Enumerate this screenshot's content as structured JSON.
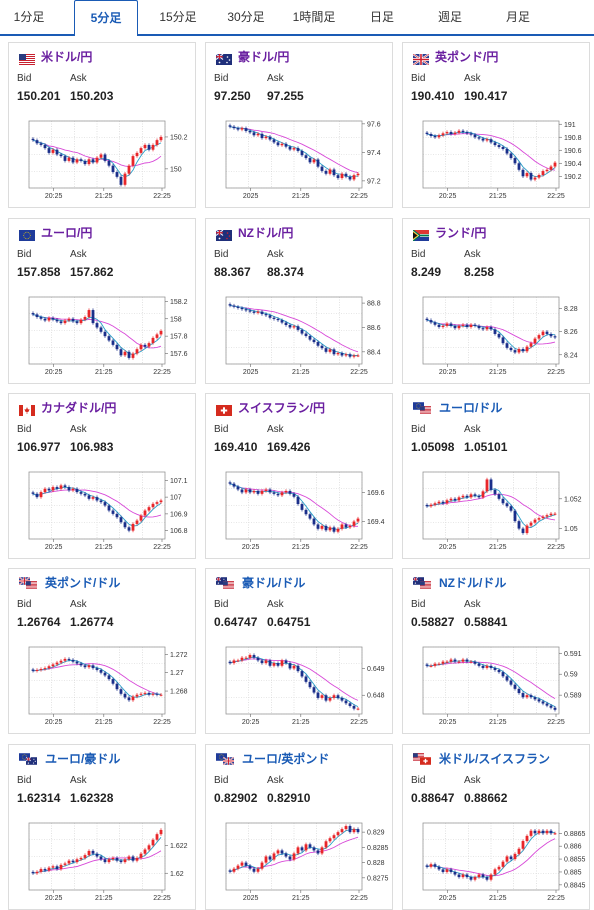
{
  "tabs": [
    {
      "label": "1分足"
    },
    {
      "label": "5分足",
      "active": true
    },
    {
      "label": "15分足"
    },
    {
      "label": "30分足"
    },
    {
      "label": "1時間足"
    },
    {
      "label": "日足"
    },
    {
      "label": "週足"
    },
    {
      "label": "月足"
    }
  ],
  "labels": {
    "bid": "Bid",
    "ask": "Ask"
  },
  "colors": {
    "up": "#e8262a",
    "down": "#1b2f8a",
    "ma_short": "#2aa0c8",
    "ma_long": "#d84ad8",
    "pair_jpy": "#6a1fa0",
    "pair_cross": "#1a5bb5"
  },
  "cards": [
    {
      "pair": "米ドル/円",
      "flags": [
        "us"
      ],
      "bid": "150.201",
      "ask": "150.203",
      "chart_data": {
        "type": "candlestick",
        "x_ticks": [
          "20:25",
          "21:25",
          "22:25"
        ],
        "y_ticks": [
          "150",
          "150.2"
        ],
        "ylim": [
          149.88,
          150.3
        ],
        "closes": [
          150.18,
          150.16,
          150.15,
          150.13,
          150.1,
          150.12,
          150.09,
          150.08,
          150.05,
          150.07,
          150.04,
          150.06,
          150.05,
          150.03,
          150.06,
          150.04,
          150.07,
          150.09,
          150.05,
          150.02,
          149.98,
          149.95,
          149.9,
          149.97,
          150.02,
          150.08,
          150.1,
          150.13,
          150.15,
          150.12,
          150.15,
          150.18,
          150.2
        ]
      }
    },
    {
      "pair": "豪ドル/円",
      "flags": [
        "au"
      ],
      "bid": "97.250",
      "ask": "97.255",
      "chart_data": {
        "type": "candlestick",
        "x_ticks": [
          "2025",
          "21:25",
          "22:25"
        ],
        "y_ticks": [
          "97.2",
          "97.4",
          "97.6"
        ],
        "ylim": [
          97.15,
          97.62
        ],
        "closes": [
          97.58,
          97.57,
          97.56,
          97.57,
          97.55,
          97.54,
          97.52,
          97.53,
          97.5,
          97.51,
          97.49,
          97.47,
          97.45,
          97.46,
          97.44,
          97.42,
          97.43,
          97.41,
          97.38,
          97.36,
          97.33,
          97.35,
          97.3,
          97.27,
          97.25,
          97.28,
          97.24,
          97.22,
          97.25,
          97.23,
          97.21,
          97.24,
          97.25
        ]
      }
    },
    {
      "pair": "英ポンド/円",
      "flags": [
        "uk"
      ],
      "bid": "190.410",
      "ask": "190.417",
      "chart_data": {
        "type": "candlestick",
        "x_ticks": [
          "20:25",
          "21:25",
          "22:25"
        ],
        "y_ticks": [
          "190.2",
          "190.4",
          "190.6",
          "190.8",
          "191"
        ],
        "ylim": [
          190.02,
          191.05
        ],
        "closes": [
          190.85,
          190.82,
          190.8,
          190.83,
          190.86,
          190.88,
          190.85,
          190.87,
          190.9,
          190.88,
          190.86,
          190.84,
          190.8,
          190.78,
          190.75,
          190.77,
          190.72,
          190.68,
          190.65,
          190.62,
          190.55,
          190.48,
          190.4,
          190.3,
          190.2,
          190.25,
          190.15,
          190.18,
          190.22,
          190.28,
          190.3,
          190.35,
          190.41
        ]
      }
    },
    {
      "pair": "ユーロ/円",
      "flags": [
        "eu"
      ],
      "bid": "157.858",
      "ask": "157.862",
      "chart_data": {
        "type": "candlestick",
        "x_ticks": [
          "20:25",
          "21:25",
          "22:25"
        ],
        "y_ticks": [
          "157.6",
          "157.8",
          "158",
          "158.2"
        ],
        "ylim": [
          157.48,
          158.25
        ],
        "closes": [
          158.05,
          158.02,
          158.0,
          157.98,
          158.01,
          157.99,
          157.97,
          157.95,
          157.98,
          158.0,
          157.97,
          157.95,
          157.99,
          158.02,
          158.1,
          157.95,
          157.9,
          157.85,
          157.8,
          157.75,
          157.7,
          157.65,
          157.58,
          157.62,
          157.55,
          157.6,
          157.65,
          157.7,
          157.68,
          157.72,
          157.78,
          157.82,
          157.86
        ]
      }
    },
    {
      "pair": "NZドル/円",
      "flags": [
        "nz"
      ],
      "bid": "88.367",
      "ask": "88.374",
      "chart_data": {
        "type": "candlestick",
        "x_ticks": [
          "2025",
          "21:25",
          "22:25"
        ],
        "y_ticks": [
          "88.4",
          "88.6",
          "88.8"
        ],
        "ylim": [
          88.3,
          88.85
        ],
        "closes": [
          88.78,
          88.77,
          88.76,
          88.75,
          88.74,
          88.73,
          88.72,
          88.73,
          88.71,
          88.7,
          88.68,
          88.67,
          88.66,
          88.64,
          88.62,
          88.6,
          88.61,
          88.58,
          88.55,
          88.53,
          88.5,
          88.48,
          88.45,
          88.43,
          88.4,
          88.42,
          88.38,
          88.39,
          88.37,
          88.38,
          88.36,
          88.37,
          88.37
        ]
      }
    },
    {
      "pair": "ランド/円",
      "flags": [
        "za"
      ],
      "bid": "8.249",
      "ask": "8.258",
      "chart_data": {
        "type": "candlestick",
        "x_ticks": [
          "20:25",
          "21:25",
          "22:25"
        ],
        "y_ticks": [
          "8.24",
          "8.26",
          "8.28"
        ],
        "ylim": [
          8.232,
          8.29
        ],
        "closes": [
          8.27,
          8.268,
          8.266,
          8.264,
          8.265,
          8.267,
          8.265,
          8.263,
          8.265,
          8.266,
          8.264,
          8.266,
          8.265,
          8.263,
          8.262,
          8.264,
          8.262,
          8.258,
          8.255,
          8.25,
          8.246,
          8.244,
          8.242,
          8.245,
          8.243,
          8.247,
          8.25,
          8.254,
          8.257,
          8.26,
          8.258,
          8.256,
          8.255
        ]
      }
    },
    {
      "pair": "カナダドル/円",
      "flags": [
        "ca"
      ],
      "bid": "106.977",
      "ask": "106.983",
      "chart_data": {
        "type": "candlestick",
        "x_ticks": [
          "20:25",
          "21:25",
          "22:25"
        ],
        "y_ticks": [
          "106.8",
          "106.9",
          "107",
          "107.1"
        ],
        "ylim": [
          106.75,
          107.15
        ],
        "closes": [
          107.02,
          107.0,
          107.03,
          107.05,
          107.04,
          107.06,
          107.05,
          107.07,
          107.06,
          107.04,
          107.05,
          107.03,
          107.02,
          107.01,
          106.99,
          107.0,
          106.98,
          106.97,
          106.95,
          106.92,
          106.9,
          106.88,
          106.85,
          106.82,
          106.8,
          106.84,
          106.86,
          106.89,
          106.92,
          106.94,
          106.96,
          106.97,
          106.98
        ]
      }
    },
    {
      "pair": "スイスフラン/円",
      "flags": [
        "ch"
      ],
      "bid": "169.410",
      "ask": "169.426",
      "chart_data": {
        "type": "candlestick",
        "x_ticks": [
          "20:25",
          "21:25",
          "22:25"
        ],
        "y_ticks": [
          "169.4",
          "169.6"
        ],
        "ylim": [
          169.28,
          169.74
        ],
        "closes": [
          169.66,
          169.64,
          169.62,
          169.6,
          169.62,
          169.6,
          169.61,
          169.59,
          169.61,
          169.62,
          169.6,
          169.59,
          169.58,
          169.6,
          169.61,
          169.59,
          169.57,
          169.52,
          169.48,
          169.45,
          169.42,
          169.38,
          169.35,
          169.37,
          169.34,
          169.36,
          169.33,
          169.35,
          169.38,
          169.36,
          169.37,
          169.4,
          169.42
        ]
      }
    },
    {
      "pair": "ユーロ/ドル",
      "flags": [
        "eu",
        "us"
      ],
      "bid": "1.05098",
      "ask": "1.05101",
      "chart_data": {
        "type": "candlestick",
        "x_ticks": [
          "20:25",
          "21:25",
          "22:25"
        ],
        "y_ticks": [
          "1.05",
          "1.052"
        ],
        "ylim": [
          1.0493,
          1.0538
        ],
        "closes": [
          1.0515,
          1.0516,
          1.0517,
          1.0518,
          1.0517,
          1.0519,
          1.052,
          1.0519,
          1.0521,
          1.0522,
          1.0521,
          1.0523,
          1.0522,
          1.0521,
          1.0525,
          1.0533,
          1.0526,
          1.0523,
          1.052,
          1.0517,
          1.0515,
          1.0512,
          1.0505,
          1.05,
          1.0497,
          1.0502,
          1.0504,
          1.0506,
          1.0507,
          1.0508,
          1.0509,
          1.051,
          1.051
        ]
      }
    },
    {
      "pair": "英ポンド/ドル",
      "flags": [
        "uk",
        "us"
      ],
      "bid": "1.26764",
      "ask": "1.26774",
      "chart_data": {
        "type": "candlestick",
        "x_ticks": [
          "20:25",
          "21:25",
          "22:25"
        ],
        "y_ticks": [
          "1.268",
          "1.27",
          "1.272"
        ],
        "ylim": [
          1.2655,
          1.2728
        ],
        "closes": [
          1.2702,
          1.2703,
          1.2704,
          1.2705,
          1.2707,
          1.2709,
          1.2711,
          1.2713,
          1.2715,
          1.2714,
          1.2712,
          1.271,
          1.2708,
          1.2706,
          1.2708,
          1.2705,
          1.2703,
          1.27,
          1.2697,
          1.2693,
          1.2688,
          1.2682,
          1.2677,
          1.2673,
          1.267,
          1.2674,
          1.2676,
          1.2677,
          1.2678,
          1.2676,
          1.2677,
          1.2676,
          1.2676
        ]
      }
    },
    {
      "pair": "豪ドル/ドル",
      "flags": [
        "au",
        "us"
      ],
      "bid": "0.64747",
      "ask": "0.64751",
      "chart_data": {
        "type": "candlestick",
        "x_ticks": [
          "20:25",
          "21:25",
          "22:25"
        ],
        "y_ticks": [
          "0.648",
          "0.649"
        ],
        "ylim": [
          0.6473,
          0.6498
        ],
        "closes": [
          0.6492,
          0.6493,
          0.6493,
          0.6494,
          0.6494,
          0.6495,
          0.6494,
          0.6493,
          0.6492,
          0.6493,
          0.6491,
          0.6492,
          0.6491,
          0.6493,
          0.6492,
          0.649,
          0.6491,
          0.6489,
          0.6487,
          0.6485,
          0.6483,
          0.6481,
          0.6479,
          0.648,
          0.6478,
          0.6479,
          0.648,
          0.6479,
          0.6478,
          0.6477,
          0.6476,
          0.6475,
          0.6475
        ]
      }
    },
    {
      "pair": "NZドル/ドル",
      "flags": [
        "nz",
        "us"
      ],
      "bid": "0.58827",
      "ask": "0.58841",
      "chart_data": {
        "type": "candlestick",
        "x_ticks": [
          "20:25",
          "21:25",
          "22:25"
        ],
        "y_ticks": [
          "0.589",
          "0.59",
          "0.591"
        ],
        "ylim": [
          0.5881,
          0.5913
        ],
        "closes": [
          0.5904,
          0.5904,
          0.5905,
          0.5905,
          0.5906,
          0.5906,
          0.5907,
          0.5906,
          0.5906,
          0.5907,
          0.5906,
          0.5906,
          0.5905,
          0.5904,
          0.5903,
          0.5904,
          0.5903,
          0.5902,
          0.5901,
          0.5899,
          0.5897,
          0.5895,
          0.5893,
          0.5891,
          0.5889,
          0.589,
          0.5889,
          0.5888,
          0.5887,
          0.5886,
          0.5885,
          0.5884,
          0.5883
        ]
      }
    },
    {
      "pair": "ユーロ/豪ドル",
      "flags": [
        "eu",
        "au"
      ],
      "bid": "1.62314",
      "ask": "1.62328",
      "chart_data": {
        "type": "candlestick",
        "x_ticks": [
          "20:25",
          "21:25",
          "22:25"
        ],
        "y_ticks": [
          "1.62",
          "1.622"
        ],
        "ylim": [
          1.6188,
          1.6236
        ],
        "closes": [
          1.62,
          1.6201,
          1.6203,
          1.6202,
          1.6204,
          1.6205,
          1.6203,
          1.6206,
          1.6207,
          1.6209,
          1.6208,
          1.621,
          1.6211,
          1.6213,
          1.6216,
          1.6214,
          1.6212,
          1.621,
          1.6208,
          1.621,
          1.6211,
          1.6209,
          1.6208,
          1.621,
          1.6212,
          1.6209,
          1.6211,
          1.6214,
          1.6217,
          1.622,
          1.6224,
          1.6228,
          1.6231
        ]
      }
    },
    {
      "pair": "ユーロ/英ポンド",
      "flags": [
        "eu",
        "uk"
      ],
      "bid": "0.82902",
      "ask": "0.82910",
      "chart_data": {
        "type": "candlestick",
        "x_ticks": [
          "2025",
          "21:25",
          "22:25"
        ],
        "y_ticks": [
          "0.8275",
          "0.828",
          "0.8285",
          "0.829"
        ],
        "ylim": [
          0.8271,
          0.8293
        ],
        "closes": [
          0.8277,
          0.8278,
          0.8279,
          0.828,
          0.8279,
          0.8278,
          0.8277,
          0.8278,
          0.828,
          0.8282,
          0.8281,
          0.8283,
          0.8284,
          0.8283,
          0.8282,
          0.8281,
          0.8283,
          0.8285,
          0.8284,
          0.8286,
          0.8285,
          0.8284,
          0.8283,
          0.8285,
          0.8287,
          0.8288,
          0.8289,
          0.829,
          0.8291,
          0.8292,
          0.829,
          0.8291,
          0.829
        ]
      }
    },
    {
      "pair": "米ドル/スイスフラン",
      "flags": [
        "us",
        "ch"
      ],
      "bid": "0.88647",
      "ask": "0.88662",
      "chart_data": {
        "type": "candlestick",
        "x_ticks": [
          "20:25",
          "21:25",
          "22:25"
        ],
        "y_ticks": [
          "0.8845",
          "0.885",
          "0.8855",
          "0.886",
          "0.8865"
        ],
        "ylim": [
          0.8843,
          0.8869
        ],
        "closes": [
          0.8852,
          0.8853,
          0.8852,
          0.8851,
          0.885,
          0.8851,
          0.885,
          0.8849,
          0.8848,
          0.8849,
          0.8848,
          0.8847,
          0.8848,
          0.8849,
          0.8848,
          0.8847,
          0.8849,
          0.8851,
          0.8852,
          0.8854,
          0.8856,
          0.8855,
          0.8857,
          0.8859,
          0.8862,
          0.8864,
          0.8866,
          0.8865,
          0.8866,
          0.8865,
          0.8866,
          0.8865,
          0.8865
        ]
      }
    }
  ]
}
